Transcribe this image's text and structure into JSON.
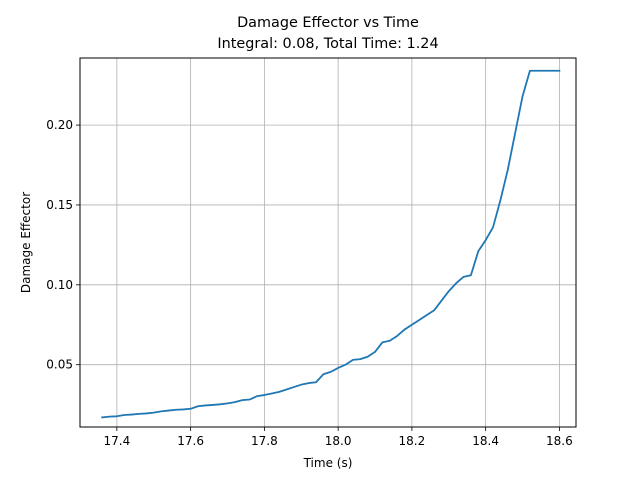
{
  "chart_data": {
    "type": "line",
    "title": "Damage Effector vs Time",
    "subtitle": "Integral: 0.08, Total Time: 1.24",
    "xlabel": "Time (s)",
    "ylabel": "Damage Effector",
    "xlim": [
      17.3,
      18.645
    ],
    "ylim": [
      0.011,
      0.242
    ],
    "grid": true,
    "x_ticks": [
      17.4,
      17.6,
      17.8,
      18.0,
      18.2,
      18.4,
      18.6
    ],
    "x_tick_labels": [
      "17.4",
      "17.6",
      "17.8",
      "18.0",
      "18.2",
      "18.4",
      "18.6"
    ],
    "y_ticks": [
      0.05,
      0.1,
      0.15,
      0.2
    ],
    "y_tick_labels": [
      "0.05",
      "0.10",
      "0.15",
      "0.20"
    ],
    "series": [
      {
        "color": "#1f77b4",
        "x": [
          17.36,
          17.38,
          17.4,
          17.42,
          17.44,
          17.46,
          17.48,
          17.5,
          17.52,
          17.54,
          17.56,
          17.58,
          17.6,
          17.62,
          17.64,
          17.66,
          17.68,
          17.7,
          17.72,
          17.74,
          17.76,
          17.78,
          17.8,
          17.82,
          17.84,
          17.86,
          17.88,
          17.9,
          17.92,
          17.94,
          17.96,
          17.98,
          18.0,
          18.02,
          18.04,
          18.06,
          18.08,
          18.1,
          18.12,
          18.14,
          18.16,
          18.18,
          18.2,
          18.22,
          18.24,
          18.26,
          18.28,
          18.3,
          18.32,
          18.34,
          18.36,
          18.38,
          18.4,
          18.42,
          18.44,
          18.46,
          18.48,
          18.5,
          18.52,
          18.54,
          18.56,
          18.58,
          18.6
        ],
        "y": [
          0.017,
          0.0175,
          0.0177,
          0.0185,
          0.0188,
          0.0192,
          0.0195,
          0.02,
          0.0208,
          0.0213,
          0.0218,
          0.022,
          0.0224,
          0.024,
          0.0245,
          0.0248,
          0.0252,
          0.0258,
          0.0266,
          0.0278,
          0.0282,
          0.0303,
          0.031,
          0.032,
          0.033,
          0.0345,
          0.036,
          0.0375,
          0.0385,
          0.039,
          0.044,
          0.0455,
          0.048,
          0.05,
          0.053,
          0.0535,
          0.055,
          0.058,
          0.064,
          0.065,
          0.068,
          0.072,
          0.075,
          0.078,
          0.081,
          0.084,
          0.09,
          0.096,
          0.101,
          0.105,
          0.106,
          0.121,
          0.128,
          0.136,
          0.153,
          0.172,
          0.195,
          0.218,
          0.234,
          0.234,
          0.234,
          0.234,
          0.234
        ]
      }
    ]
  }
}
